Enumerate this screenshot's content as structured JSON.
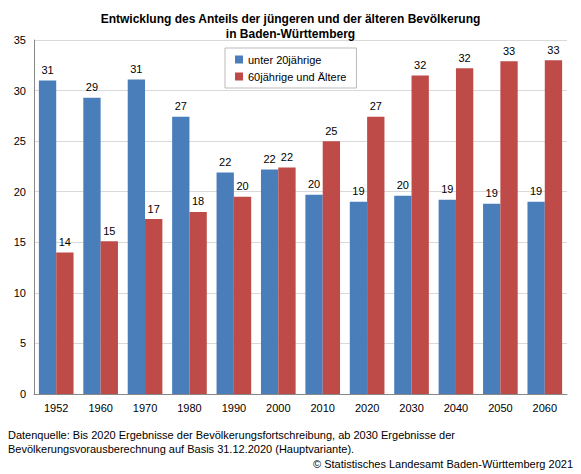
{
  "chart_data": {
    "type": "bar",
    "title": "Entwicklung des Anteils der jüngeren und der älteren Bevölkerung\nin Baden-Württemberg",
    "categories": [
      "1952",
      "1960",
      "1970",
      "1980",
      "1990",
      "2000",
      "2010",
      "2020",
      "2030",
      "2040",
      "2050",
      "2060"
    ],
    "series": [
      {
        "name": "unter 20jährige",
        "color": "#4a7ebb",
        "values": [
          31.0,
          29.3,
          31.1,
          27.4,
          21.9,
          22.2,
          19.7,
          19.0,
          19.6,
          19.2,
          18.8,
          19.0
        ],
        "value_labels": [
          "31",
          "29",
          "31",
          "27",
          "22",
          "22",
          "20",
          "19",
          "20",
          "19",
          "19",
          "19"
        ]
      },
      {
        "name": "60jährige und Ältere",
        "color": "#be4b48",
        "values": [
          14.0,
          15.1,
          17.3,
          18.0,
          19.5,
          22.4,
          25.0,
          27.4,
          31.5,
          32.2,
          32.9,
          33.0
        ],
        "value_labels": [
          "14",
          "15",
          "17",
          "18",
          "20",
          "22",
          "25",
          "27",
          "32",
          "32",
          "33",
          "33"
        ]
      }
    ],
    "ylim": [
      0,
      35
    ],
    "yticks": [
      0,
      5,
      10,
      15,
      20,
      25,
      30,
      35
    ],
    "grid": true,
    "legend": "top",
    "data_labels": true,
    "source": "Datenquelle: Bis 2020 Ergebnisse der Bevölkerungsfortschreibung, ab 2030 Ergebnisse der\nBevölkerungsvorausberechnung auf Basis 31.12.2020 (Hauptvariante).",
    "copyright": "© Statistisches Landesamt Baden-Württemberg 2021"
  }
}
